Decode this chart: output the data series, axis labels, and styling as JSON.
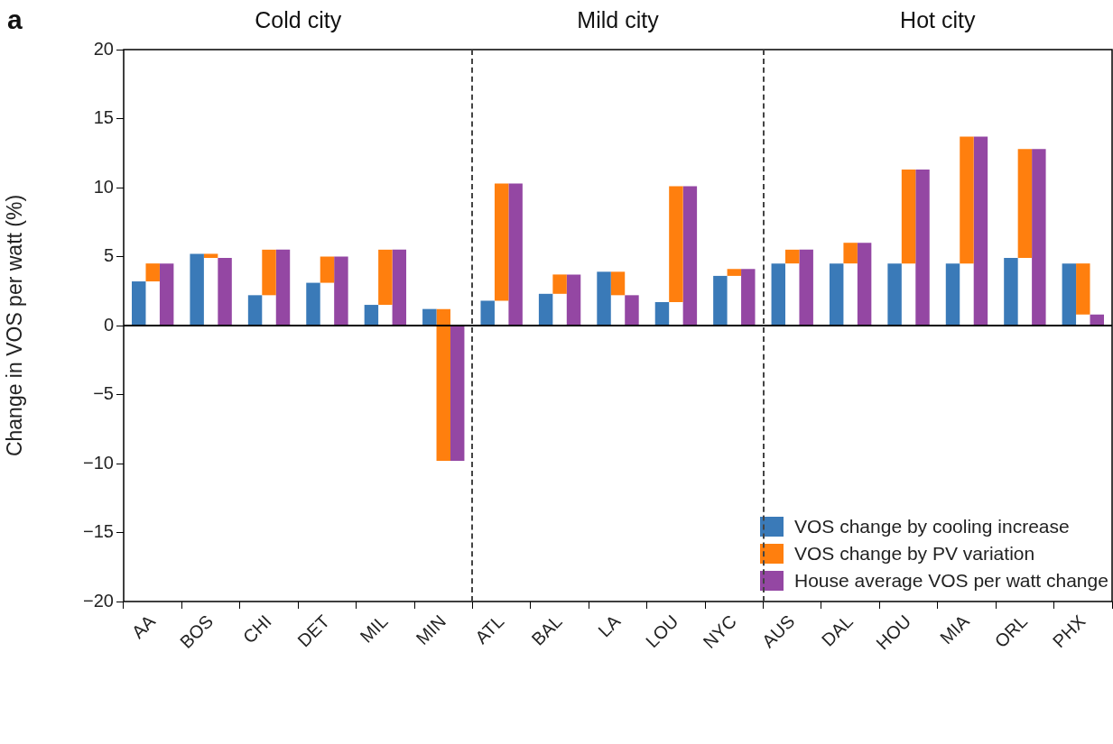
{
  "chart_data": {
    "type": "bar",
    "ylabel": "Change in VOS per watt (%)",
    "categories": [
      "AA",
      "BOS",
      "CHI",
      "DET",
      "MIL",
      "MIN",
      "ATL",
      "BAL",
      "LA",
      "LOU",
      "NYC",
      "AUS",
      "DAL",
      "HOU",
      "MIA",
      "ORL",
      "PHX"
    ],
    "series": [
      {
        "name": "VOS change by cooling increase",
        "color": "#3a7ab8",
        "values": [
          3.2,
          5.2,
          2.2,
          3.1,
          1.5,
          1.2,
          1.8,
          2.3,
          3.9,
          1.7,
          3.6,
          4.5,
          4.5,
          4.5,
          4.5,
          4.9,
          4.5
        ]
      },
      {
        "name": "VOS change by PV variation",
        "color": "#ff7f0e",
        "base": [
          3.2,
          5.2,
          2.2,
          3.1,
          1.5,
          1.2,
          1.8,
          2.3,
          3.9,
          1.7,
          3.6,
          4.5,
          4.5,
          4.5,
          4.5,
          4.9,
          4.5
        ],
        "values": [
          1.3,
          -0.3,
          3.3,
          1.9,
          4.0,
          -11.0,
          8.5,
          1.4,
          -1.7,
          8.4,
          0.5,
          1.0,
          1.5,
          6.8,
          9.2,
          7.9,
          -3.7
        ]
      },
      {
        "name": "House average VOS per watt change",
        "color": "#9447a3",
        "values": [
          4.5,
          4.9,
          5.5,
          5.0,
          5.5,
          -9.8,
          10.3,
          3.7,
          2.2,
          10.1,
          4.1,
          5.5,
          6.0,
          11.3,
          13.7,
          12.8,
          0.8
        ]
      }
    ],
    "ylim": [
      -20,
      20
    ],
    "yticks": [
      {
        "value": -20,
        "label": "−20"
      },
      {
        "value": -15,
        "label": "−15"
      },
      {
        "value": -10,
        "label": "−10"
      },
      {
        "value": -5,
        "label": "−5"
      },
      0,
      5,
      10,
      15,
      20
    ],
    "ref_lines": [
      {
        "axis": "y",
        "value": 0,
        "color": "#000000",
        "line_style": "solid"
      }
    ],
    "annotations": [
      "a",
      "Cold city",
      "Mild city",
      "Hot city"
    ],
    "legend": "bottom right"
  }
}
